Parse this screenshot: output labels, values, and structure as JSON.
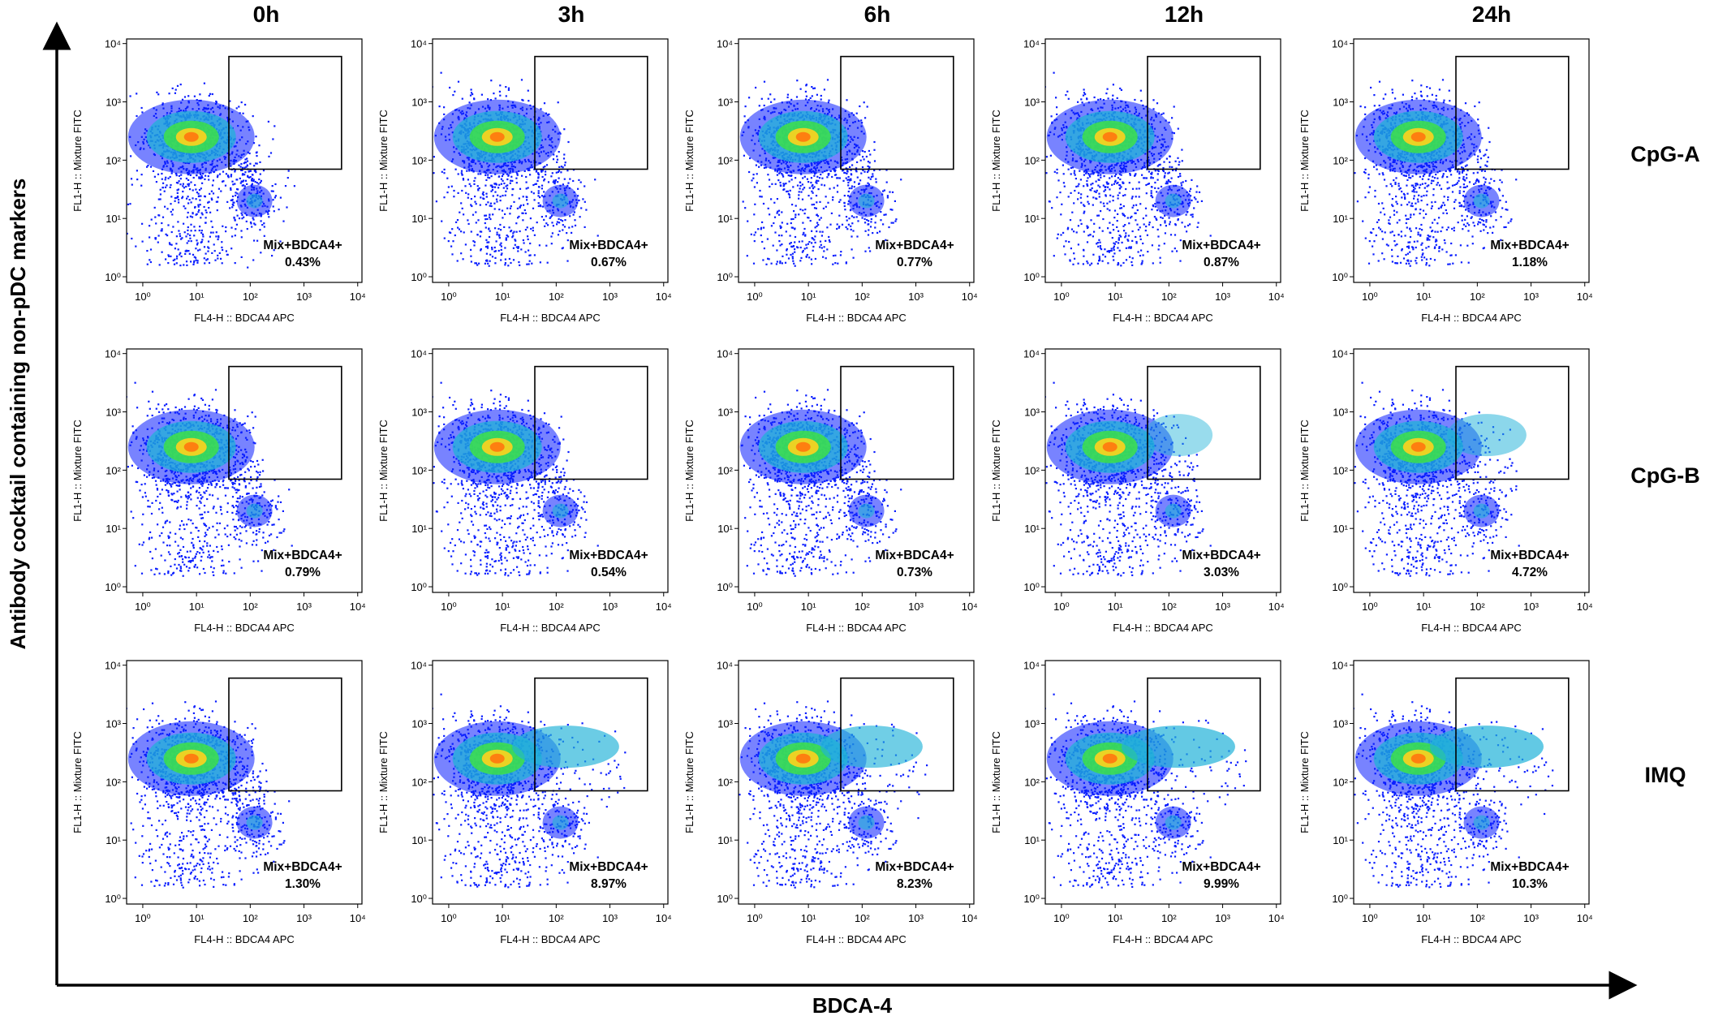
{
  "chart_data": {
    "type": "scatter",
    "plot_style": "pseudocolor density flow cytometry dot plots",
    "columns": [
      "0h",
      "3h",
      "6h",
      "12h",
      "24h"
    ],
    "rows": [
      "CpG-A",
      "CpG-B",
      "IMQ"
    ],
    "xlabel": "BDCA-4",
    "ylabel": "Antibody cocktail containing non-pDC markers",
    "x_scale": "log",
    "y_scale": "log",
    "panel_x_axis_label": "FL4-H :: BDCA4 APC",
    "panel_y_axis_label": "FL1-H :: Mixture FITC",
    "ticks": [
      {
        "value": 1,
        "label": "10⁰"
      },
      {
        "value": 10,
        "label": "10¹"
      },
      {
        "value": 100,
        "label": "10²"
      },
      {
        "value": 1000,
        "label": "10³"
      },
      {
        "value": 10000,
        "label": "10⁴"
      }
    ],
    "xlim": [
      0.5,
      12000
    ],
    "ylim": [
      0.8,
      12000
    ],
    "gate_name": "Mix+BDCA4+",
    "gate_region": {
      "x": [
        40,
        5000
      ],
      "y": [
        70,
        6000
      ]
    },
    "populations": {
      "non_pDC": {
        "x": 8,
        "y": 250
      },
      "pDC": {
        "x": 120,
        "y": 20
      }
    },
    "panels": [
      [
        {
          "time": "0h",
          "value_label": "0.43%",
          "value": 0.43
        },
        {
          "time": "3h",
          "value_label": "0.67%",
          "value": 0.67
        },
        {
          "time": "6h",
          "value_label": "0.77%",
          "value": 0.77
        },
        {
          "time": "12h",
          "value_label": "0.87%",
          "value": 0.87
        },
        {
          "time": "24h",
          "value_label": "1.18%",
          "value": 1.18
        }
      ],
      [
        {
          "time": "0h",
          "value_label": "0.79%",
          "value": 0.79
        },
        {
          "time": "3h",
          "value_label": "0.54%",
          "value": 0.54
        },
        {
          "time": "6h",
          "value_label": "0.73%",
          "value": 0.73
        },
        {
          "time": "12h",
          "value_label": "3.03%",
          "value": 3.03
        },
        {
          "time": "24h",
          "value_label": "4.72%",
          "value": 4.72
        }
      ],
      [
        {
          "time": "0h",
          "value_label": "1.30%",
          "value": 1.3
        },
        {
          "time": "3h",
          "value_label": "8.97%",
          "value": 8.97
        },
        {
          "time": "6h",
          "value_label": "8.23%",
          "value": 8.23
        },
        {
          "time": "12h",
          "value_label": "9.99%",
          "value": 9.99
        },
        {
          "time": "24h",
          "value_label": "10.3%",
          "value": 10.3
        }
      ]
    ],
    "colors": {
      "low_density": "#0a1eff",
      "mid_density": "#1fb2d8",
      "high_density": "#3ce048",
      "peak_density": "#ffd21e",
      "max_density": "#ff7a10"
    }
  }
}
